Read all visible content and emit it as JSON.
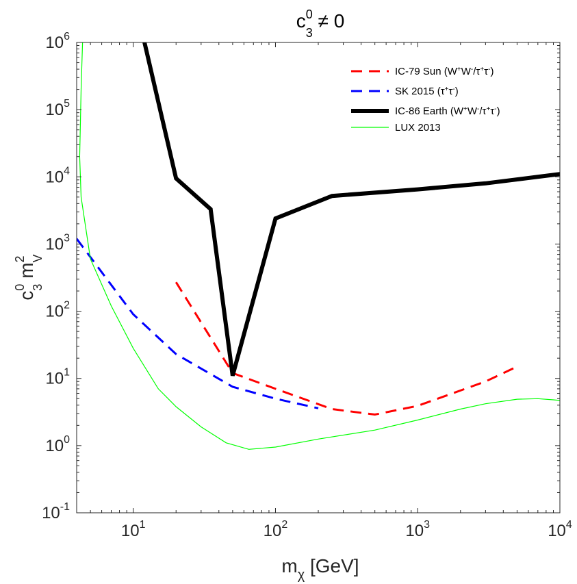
{
  "chart_data": {
    "type": "line",
    "title": {
      "base": "c",
      "sup": "0",
      "sub": "3",
      "rest": " ≠ 0"
    },
    "xlabel": {
      "base": "m",
      "sub": "χ",
      "rest": " [GeV]"
    },
    "ylabel": {
      "base": "c",
      "sup": "0",
      "sub": "3",
      "mid": " m",
      "sup2": "2",
      "sub2": "V"
    },
    "xscale": "log",
    "yscale": "log",
    "xlim": [
      4,
      10000
    ],
    "ylim": [
      0.1,
      1000000
    ],
    "xticks": [
      {
        "value": 10,
        "base": "10",
        "exp": "1"
      },
      {
        "value": 100,
        "base": "10",
        "exp": "2"
      },
      {
        "value": 1000,
        "base": "10",
        "exp": "3"
      },
      {
        "value": 10000,
        "base": "10",
        "exp": "4"
      }
    ],
    "yticks": [
      {
        "value": 0.1,
        "base": "10",
        "exp": "-1"
      },
      {
        "value": 1,
        "base": "10",
        "exp": "0"
      },
      {
        "value": 10,
        "base": "10",
        "exp": "1"
      },
      {
        "value": 100,
        "base": "10",
        "exp": "2"
      },
      {
        "value": 1000,
        "base": "10",
        "exp": "3"
      },
      {
        "value": 10000,
        "base": "10",
        "exp": "4"
      },
      {
        "value": 100000,
        "base": "10",
        "exp": "5"
      },
      {
        "value": 1000000,
        "base": "10",
        "exp": "6"
      }
    ],
    "legend_position": "top-right",
    "series": [
      {
        "name": "IC-79 Sun (W⁺W⁻/τ⁺τ⁻)",
        "legend": [
          {
            "t": "IC-79 Sun (W"
          },
          {
            "t": "+",
            "sup": true
          },
          {
            "t": "W"
          },
          {
            "t": "-",
            "sup": true
          },
          {
            "t": "/τ"
          },
          {
            "t": "+",
            "sup": true
          },
          {
            "t": "τ"
          },
          {
            "t": "-",
            "sup": true
          },
          {
            "t": ")"
          }
        ],
        "color": "#ff0000",
        "style": "dashed",
        "x": [
          20,
          50,
          100,
          250,
          500,
          1000,
          3000,
          5000
        ],
        "y": [
          270,
          12,
          7,
          3.5,
          2.9,
          3.9,
          9,
          15
        ]
      },
      {
        "name": "SK 2015 (τ⁺τ⁻)",
        "legend": [
          {
            "t": "SK 2015 (τ"
          },
          {
            "t": "+",
            "sup": true
          },
          {
            "t": "τ"
          },
          {
            "t": "-",
            "sup": true
          },
          {
            "t": ")"
          }
        ],
        "color": "#0000ff",
        "style": "dashed",
        "x": [
          4,
          10,
          20,
          50,
          100,
          200
        ],
        "y": [
          1200,
          90,
          23,
          7.5,
          5,
          3.6
        ]
      },
      {
        "name": "IC-86 Earth (W⁺W⁻/τ⁺τ⁻)",
        "legend": [
          {
            "t": "IC-86 Earth (W"
          },
          {
            "t": "+",
            "sup": true
          },
          {
            "t": "W"
          },
          {
            "t": "-",
            "sup": true
          },
          {
            "t": "/τ"
          },
          {
            "t": "+",
            "sup": true
          },
          {
            "t": "τ"
          },
          {
            "t": "-",
            "sup": true
          },
          {
            "t": ")"
          }
        ],
        "color": "#000000",
        "style": "thick",
        "x": [
          12,
          20,
          35,
          50,
          100,
          250,
          1000,
          3000,
          10000
        ],
        "y": [
          1000000,
          9500,
          3300,
          11,
          2400,
          5200,
          6500,
          8000,
          11000
        ]
      },
      {
        "name": "LUX 2013",
        "legend": [
          {
            "t": "LUX 2013"
          }
        ],
        "color": "#00ff00",
        "style": "thin",
        "x": [
          4.4,
          4.3,
          4.2,
          4.3,
          5,
          7,
          10,
          15,
          20,
          30,
          45,
          65,
          100,
          200,
          500,
          1000,
          2000,
          3000,
          5000,
          7000,
          9000,
          10000
        ],
        "y": [
          1000000,
          200000,
          20000,
          5000,
          600,
          120,
          28,
          7,
          3.8,
          1.9,
          1.1,
          0.88,
          0.95,
          1.25,
          1.7,
          2.4,
          3.5,
          4.2,
          4.9,
          5,
          4.8,
          4.7
        ]
      }
    ]
  }
}
